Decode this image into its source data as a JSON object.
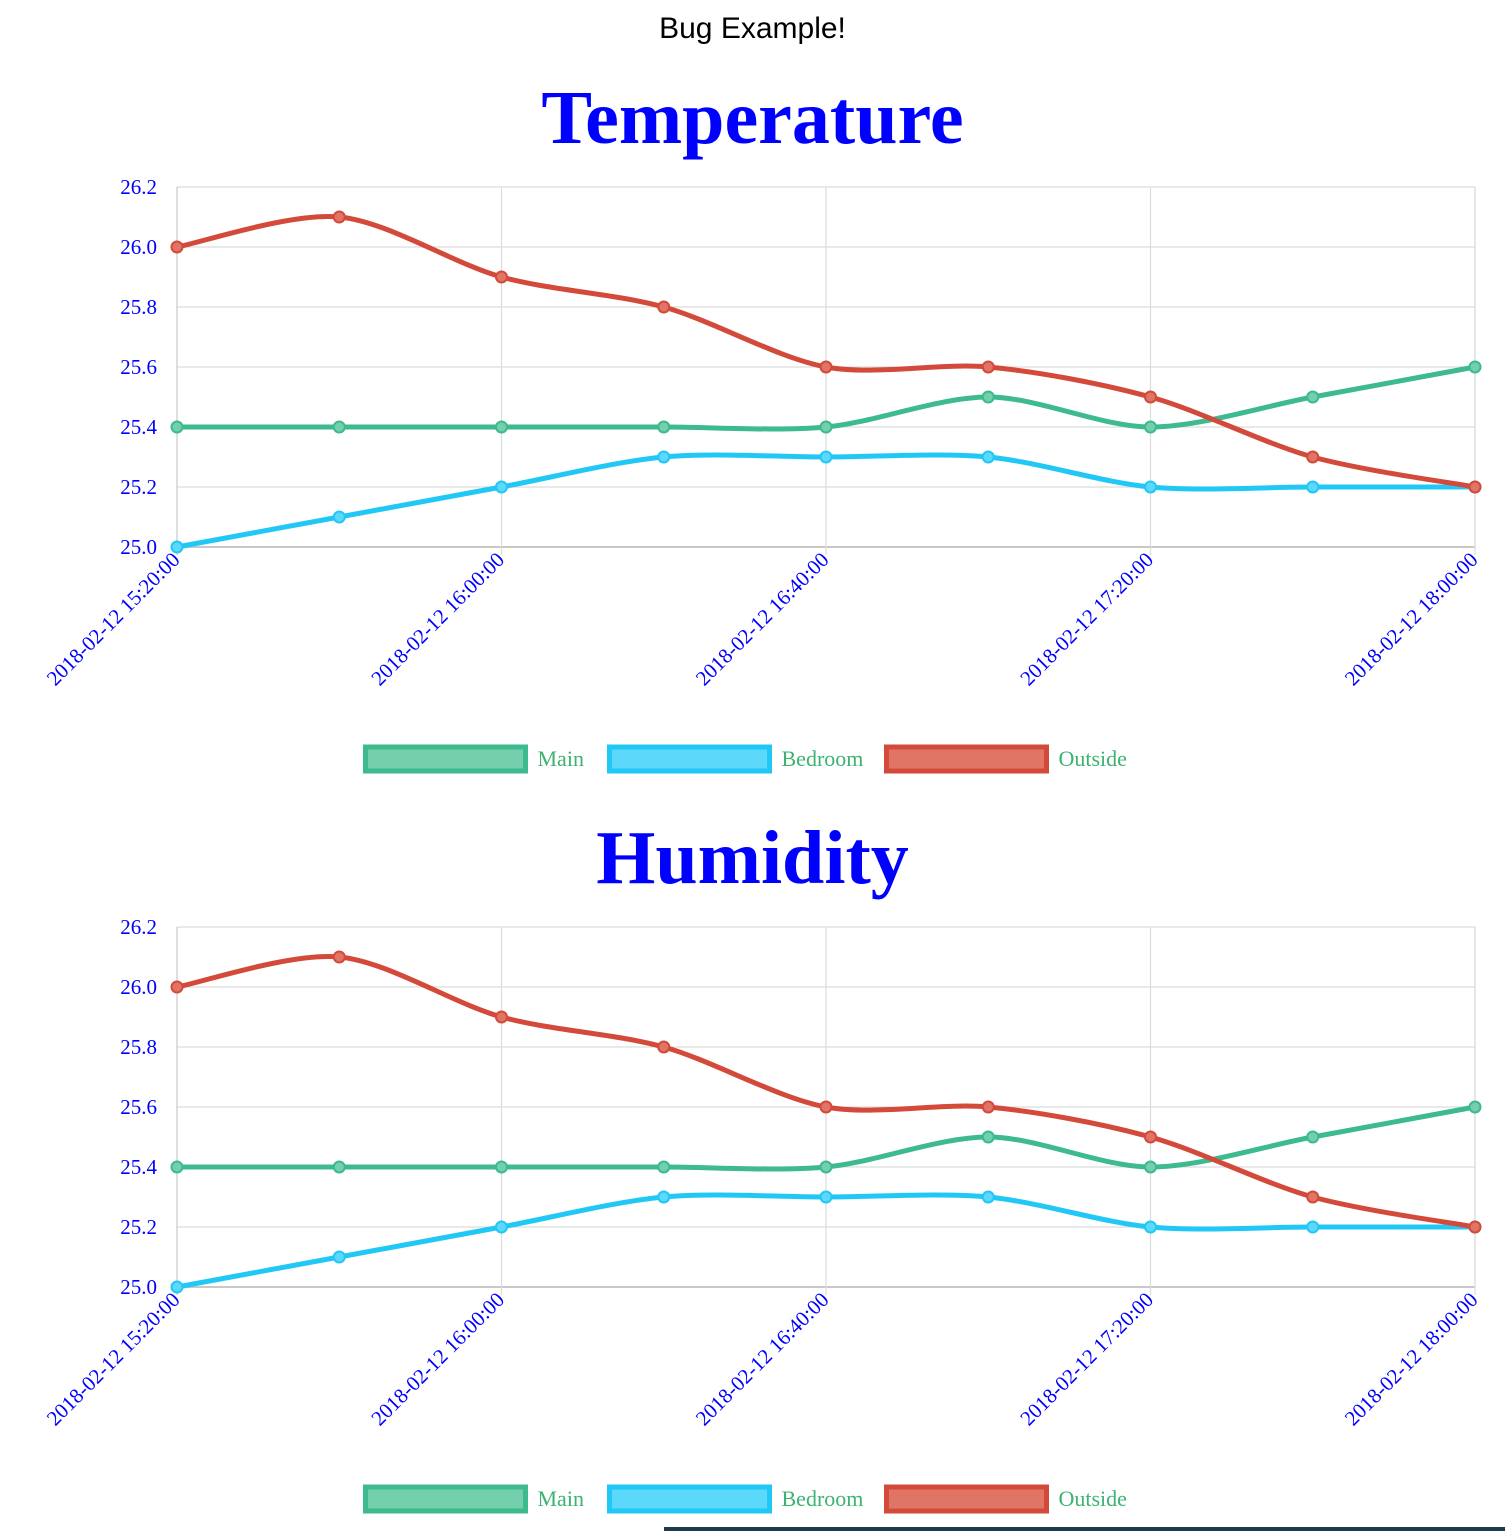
{
  "page": {
    "header": "Bug Example!"
  },
  "style": {
    "title_color": "#0000ff",
    "tick_color": "#0000ff",
    "legend_text_color": "#3cb371",
    "grid_color": "#dcdcdc",
    "axis_color": "#c8c8c8"
  },
  "chart_data": [
    {
      "type": "line",
      "title": "Temperature",
      "x": [
        "2018-02-12 15:20:00",
        "2018-02-12 15:40:00",
        "2018-02-12 16:00:00",
        "2018-02-12 16:20:00",
        "2018-02-12 16:40:00",
        "2018-02-12 17:00:00",
        "2018-02-12 17:20:00",
        "2018-02-12 17:40:00",
        "2018-02-12 18:00:00"
      ],
      "x_tick_labels": [
        "2018-02-12 15:20:00",
        "2018-02-12 16:00:00",
        "2018-02-12 16:40:00",
        "2018-02-12 17:20:00",
        "2018-02-12 18:00:00"
      ],
      "ylim": [
        25.0,
        26.2
      ],
      "y_ticks": [
        "26.2",
        "26.0",
        "25.8",
        "25.6",
        "25.4",
        "25.2",
        "25.0"
      ],
      "grid": true,
      "legend_position": "bottom",
      "series": [
        {
          "name": "Main",
          "color": "#3dba8e",
          "fill": "#73cfac",
          "values": [
            25.4,
            25.4,
            25.4,
            25.4,
            25.4,
            25.5,
            25.4,
            25.5,
            25.6
          ]
        },
        {
          "name": "Bedroom",
          "color": "#22c8f5",
          "fill": "#5cd8fb",
          "values": [
            25.0,
            25.1,
            25.2,
            25.3,
            25.3,
            25.3,
            25.2,
            25.2,
            25.2
          ]
        },
        {
          "name": "Outside",
          "color": "#d44a3a",
          "fill": "#e07566",
          "values": [
            26.0,
            26.1,
            25.9,
            25.8,
            25.6,
            25.6,
            25.5,
            25.3,
            25.2
          ]
        }
      ]
    },
    {
      "type": "line",
      "title": "Humidity",
      "x": [
        "2018-02-12 15:20:00",
        "2018-02-12 15:40:00",
        "2018-02-12 16:00:00",
        "2018-02-12 16:20:00",
        "2018-02-12 16:40:00",
        "2018-02-12 17:00:00",
        "2018-02-12 17:20:00",
        "2018-02-12 17:40:00",
        "2018-02-12 18:00:00"
      ],
      "x_tick_labels": [
        "2018-02-12 15:20:00",
        "2018-02-12 16:00:00",
        "2018-02-12 16:40:00",
        "2018-02-12 17:20:00",
        "2018-02-12 18:00:00"
      ],
      "ylim": [
        25.0,
        26.2
      ],
      "y_ticks": [
        "26.2",
        "26.0",
        "25.8",
        "25.6",
        "25.4",
        "25.2",
        "25.0"
      ],
      "grid": true,
      "legend_position": "bottom",
      "series": [
        {
          "name": "Main",
          "color": "#3dba8e",
          "fill": "#73cfac",
          "values": [
            25.4,
            25.4,
            25.4,
            25.4,
            25.4,
            25.5,
            25.4,
            25.5,
            25.6
          ]
        },
        {
          "name": "Bedroom",
          "color": "#22c8f5",
          "fill": "#5cd8fb",
          "values": [
            25.0,
            25.1,
            25.2,
            25.3,
            25.3,
            25.3,
            25.2,
            25.2,
            25.2
          ]
        },
        {
          "name": "Outside",
          "color": "#d44a3a",
          "fill": "#e07566",
          "values": [
            26.0,
            26.1,
            25.9,
            25.8,
            25.6,
            25.6,
            25.5,
            25.3,
            25.2
          ]
        }
      ]
    }
  ]
}
